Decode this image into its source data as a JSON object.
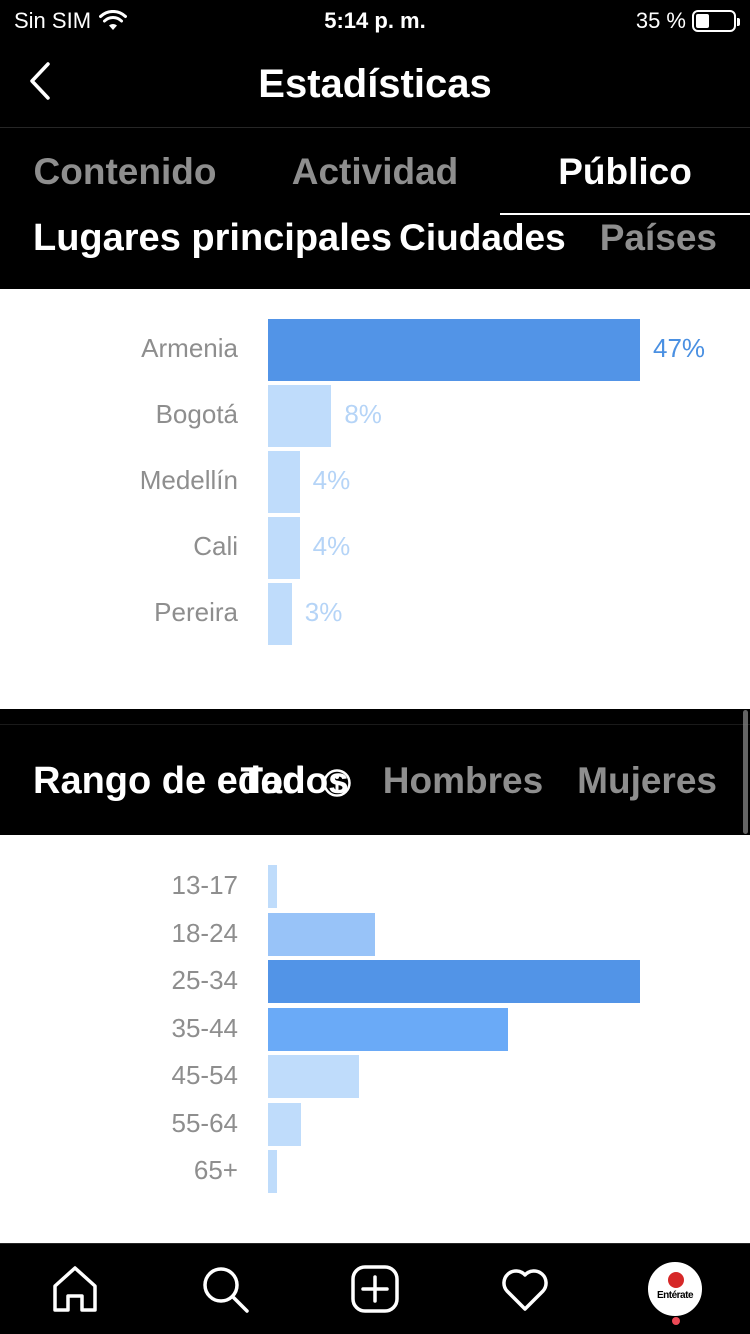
{
  "status_bar": {
    "carrier": "Sin SIM",
    "time": "5:14 p. m.",
    "battery": "35 %",
    "battery_level": 0.35
  },
  "header": {
    "title": "Estadísticas"
  },
  "tabs": [
    {
      "label": "Contenido",
      "active": false
    },
    {
      "label": "Actividad",
      "active": false
    },
    {
      "label": "Público",
      "active": true
    }
  ],
  "locations": {
    "title": "Lugares principales",
    "filters": [
      {
        "label": "Ciudades",
        "active": true
      },
      {
        "label": "Países",
        "active": false
      }
    ],
    "chart_data": {
      "type": "bar",
      "categories": [
        "Armenia",
        "Bogotá",
        "Medellín",
        "Cali",
        "Pereira"
      ],
      "values": [
        47,
        8,
        4,
        4,
        3
      ],
      "value_labels": [
        "47%",
        "8%",
        "4%",
        "4%",
        "3%"
      ]
    }
  },
  "age_range": {
    "title": "Rango de edad",
    "filters": [
      {
        "label": "Todos",
        "active": true
      },
      {
        "label": "Hombres",
        "active": false
      },
      {
        "label": "Mujeres",
        "active": false
      }
    ],
    "chart_data": {
      "type": "bar",
      "categories": [
        "13-17",
        "18-24",
        "25-34",
        "35-44",
        "45-54",
        "55-64",
        "65+"
      ],
      "values": [
        1,
        13,
        45,
        29,
        11,
        4,
        1
      ]
    }
  },
  "colors": {
    "bar_primary": "#5294e7",
    "bar_medium": "#6aaaf7",
    "bar_medium_light": "#98c3f8",
    "bar_light": "#bfdcfb",
    "pct_primary": "#4a90e2",
    "pct_light": "#b5d4f7"
  },
  "tabbar": {
    "items": [
      "home-icon",
      "search-icon",
      "new-post-icon",
      "heart-icon",
      "profile-avatar"
    ],
    "avatar_logo": "Entérate"
  }
}
